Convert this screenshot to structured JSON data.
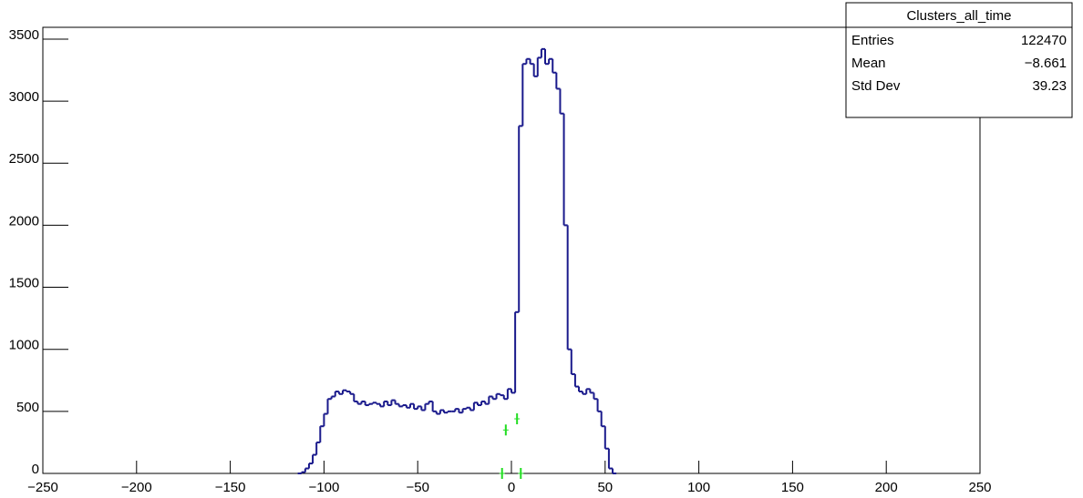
{
  "chart_data": {
    "type": "histogram",
    "bins": [
      -114,
      -112,
      -110,
      -108,
      -106,
      -104,
      -102,
      -100,
      -98,
      -96,
      -94,
      -92,
      -90,
      -88,
      -86,
      -84,
      -82,
      -80,
      -78,
      -76,
      -74,
      -72,
      -70,
      -68,
      -66,
      -64,
      -62,
      -60,
      -58,
      -56,
      -54,
      -52,
      -50,
      -48,
      -46,
      -44,
      -42,
      -40,
      -38,
      -36,
      -34,
      -32,
      -30,
      -28,
      -26,
      -24,
      -22,
      -20,
      -18,
      -16,
      -14,
      -12,
      -10,
      -8,
      -6,
      -4,
      -2,
      0,
      2,
      4,
      6,
      8,
      10,
      12,
      14,
      16,
      18,
      20,
      22,
      24,
      26,
      28,
      30,
      32,
      34,
      36,
      38,
      40,
      42,
      44,
      46,
      48,
      50,
      52,
      54,
      56
    ],
    "values": [
      0,
      10,
      40,
      80,
      150,
      250,
      380,
      480,
      600,
      620,
      660,
      640,
      670,
      660,
      640,
      580,
      560,
      580,
      550,
      560,
      570,
      560,
      540,
      580,
      550,
      590,
      560,
      540,
      550,
      530,
      560,
      520,
      540,
      510,
      560,
      580,
      500,
      480,
      510,
      490,
      500,
      500,
      520,
      490,
      520,
      530,
      510,
      570,
      550,
      580,
      560,
      620,
      600,
      640,
      630,
      600,
      680,
      650,
      1300,
      2800,
      3300,
      3340,
      3300,
      3200,
      3350,
      3420,
      3300,
      3340,
      3230,
      3100,
      2900,
      2000,
      1000,
      800,
      700,
      660,
      640,
      680,
      650,
      600,
      500,
      380,
      200,
      40,
      0
    ],
    "color": "#1a1a8c",
    "points": {
      "x": [
        -5,
        -3,
        3,
        5
      ],
      "values": [
        0,
        350,
        440,
        0
      ],
      "color": "#22dd22"
    },
    "xlim": [
      -250,
      250
    ],
    "xticks": [
      {
        "value": -250,
        "label": "−250"
      },
      {
        "value": -200,
        "label": "−200"
      },
      {
        "value": -150,
        "label": "−150"
      },
      {
        "value": -100,
        "label": "−100"
      },
      {
        "value": -50,
        "label": "−50"
      },
      0,
      50,
      100,
      150,
      200,
      250
    ],
    "ylim": [
      0,
      3595
    ],
    "yticks": [
      0,
      500,
      1000,
      1500,
      2000,
      2500,
      3000,
      3500
    ],
    "stats": {
      "title": "Clusters_all_time",
      "rows": [
        [
          "Entries",
          "122470"
        ],
        [
          "Mean",
          "−8.661"
        ],
        [
          "Std Dev",
          "39.23"
        ]
      ]
    }
  }
}
